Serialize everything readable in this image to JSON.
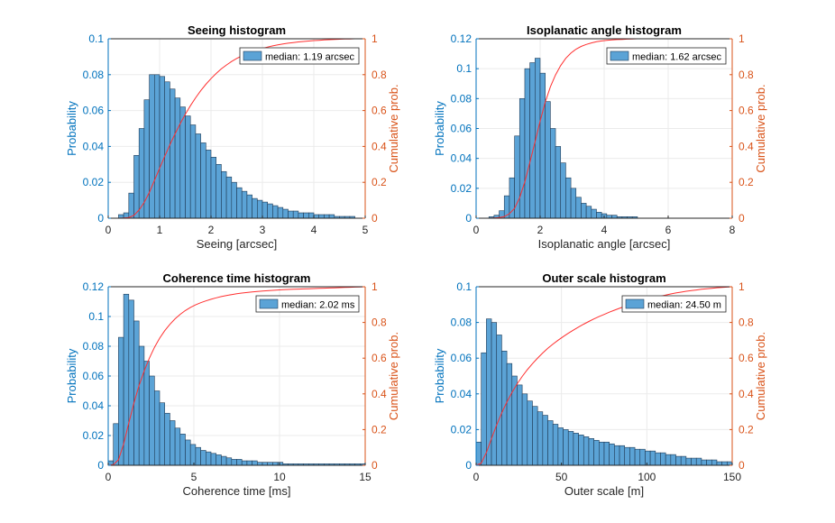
{
  "colors": {
    "bar": "#5ba3d6",
    "bar_edge": "#1f3a55",
    "left_axis": "#0072bd",
    "right_axis": "#d95319",
    "cdf": "#ff3030"
  },
  "chart_data": [
    {
      "type": "bar",
      "title": "Seeing histogram",
      "xlabel": "Seeing [arcsec]",
      "ylabel": "Probability",
      "ylabel_right": "Cumulative prob.",
      "xlim": [
        0,
        5
      ],
      "xticks": [
        "0",
        "1",
        "2",
        "3",
        "4",
        "5"
      ],
      "ylim": [
        0,
        0.1
      ],
      "yticks": [
        "0",
        "0.02",
        "0.04",
        "0.06",
        "0.08",
        "0.1"
      ],
      "y2lim": [
        0,
        1
      ],
      "y2ticks": [
        "0",
        "0.2",
        "0.4",
        "0.6",
        "0.8",
        "1"
      ],
      "legend": "median: 1.19 arcsec",
      "legend_position": "top-right",
      "bin_start": 0.2,
      "bin_width": 0.1,
      "values": [
        0.002,
        0.003,
        0.014,
        0.035,
        0.05,
        0.066,
        0.08,
        0.08,
        0.079,
        0.076,
        0.072,
        0.067,
        0.062,
        0.057,
        0.052,
        0.047,
        0.042,
        0.038,
        0.034,
        0.03,
        0.026,
        0.023,
        0.02,
        0.017,
        0.015,
        0.013,
        0.011,
        0.01,
        0.009,
        0.008,
        0.007,
        0.006,
        0.005,
        0.004,
        0.004,
        0.003,
        0.003,
        0.003,
        0.002,
        0.002,
        0.002,
        0.002,
        0.001,
        0.001,
        0.001,
        0.001
      ]
    },
    {
      "type": "bar",
      "title": "Isoplanatic angle histogram",
      "xlabel": "Isoplanatic angle [arcsec]",
      "ylabel": "Probability",
      "ylabel_right": "Cumulative prob.",
      "xlim": [
        0,
        8
      ],
      "xticks": [
        "0",
        "2",
        "4",
        "6",
        "8"
      ],
      "ylim": [
        0,
        0.12
      ],
      "yticks": [
        "0",
        "0.02",
        "0.04",
        "0.06",
        "0.08",
        "0.1",
        "0.12"
      ],
      "y2lim": [
        0,
        1
      ],
      "y2ticks": [
        "0",
        "0.2",
        "0.4",
        "0.6",
        "0.8",
        "1"
      ],
      "legend": "median: 1.62 arcsec",
      "legend_position": "top-right",
      "bin_start": 0.4,
      "bin_width": 0.16,
      "values": [
        0.001,
        0.002,
        0.005,
        0.015,
        0.027,
        0.055,
        0.08,
        0.1,
        0.104,
        0.107,
        0.097,
        0.078,
        0.06,
        0.048,
        0.037,
        0.027,
        0.02,
        0.014,
        0.01,
        0.008,
        0.006,
        0.004,
        0.003,
        0.002,
        0.002,
        0.001,
        0.001,
        0.001,
        0.001
      ]
    },
    {
      "type": "bar",
      "title": "Coherence time histogram",
      "xlabel": "Coherence time [ms]",
      "ylabel": "Probability",
      "ylabel_right": "Cumulative prob.",
      "xlim": [
        0,
        15
      ],
      "xticks": [
        "0",
        "5",
        "10",
        "15"
      ],
      "ylim": [
        0,
        0.12
      ],
      "yticks": [
        "0",
        "0.02",
        "0.04",
        "0.06",
        "0.08",
        "0.1",
        "0.12"
      ],
      "y2lim": [
        0,
        1
      ],
      "y2ticks": [
        "0",
        "0.2",
        "0.4",
        "0.6",
        "0.8",
        "1"
      ],
      "legend": "median: 2.02 ms",
      "legend_position": "top-right",
      "bin_start": 0,
      "bin_width": 0.3,
      "values": [
        0.003,
        0.028,
        0.086,
        0.115,
        0.111,
        0.097,
        0.08,
        0.07,
        0.06,
        0.05,
        0.042,
        0.035,
        0.03,
        0.025,
        0.021,
        0.017,
        0.014,
        0.012,
        0.01,
        0.009,
        0.008,
        0.007,
        0.006,
        0.005,
        0.004,
        0.004,
        0.003,
        0.003,
        0.003,
        0.002,
        0.002,
        0.002,
        0.002,
        0.002,
        0.001,
        0.001,
        0.001,
        0.001,
        0.001,
        0.001,
        0.001,
        0.001,
        0.001,
        0.001,
        0.001,
        0.001,
        0.001,
        0.001,
        0.001,
        0.001
      ]
    },
    {
      "type": "bar",
      "title": "Outer scale histogram",
      "xlabel": "Outer scale [m]",
      "ylabel": "Probability",
      "ylabel_right": "Cumulative prob.",
      "xlim": [
        0,
        150
      ],
      "xticks": [
        "0",
        "50",
        "100",
        "150"
      ],
      "ylim": [
        0,
        0.1
      ],
      "yticks": [
        "0",
        "0.02",
        "0.04",
        "0.06",
        "0.08",
        "0.1"
      ],
      "y2lim": [
        0,
        1
      ],
      "y2ticks": [
        "0",
        "0.2",
        "0.4",
        "0.6",
        "0.8",
        "1"
      ],
      "legend": "median: 24.50 m",
      "legend_position": "top-right",
      "bin_start": 0,
      "bin_width": 3,
      "values": [
        0.013,
        0.063,
        0.082,
        0.08,
        0.073,
        0.064,
        0.057,
        0.05,
        0.045,
        0.04,
        0.036,
        0.033,
        0.03,
        0.028,
        0.025,
        0.023,
        0.021,
        0.02,
        0.019,
        0.018,
        0.017,
        0.016,
        0.015,
        0.014,
        0.013,
        0.013,
        0.012,
        0.011,
        0.011,
        0.01,
        0.01,
        0.009,
        0.009,
        0.008,
        0.008,
        0.007,
        0.007,
        0.006,
        0.006,
        0.005,
        0.005,
        0.004,
        0.004,
        0.004,
        0.003,
        0.003,
        0.003,
        0.002,
        0.002,
        0.002
      ]
    }
  ]
}
